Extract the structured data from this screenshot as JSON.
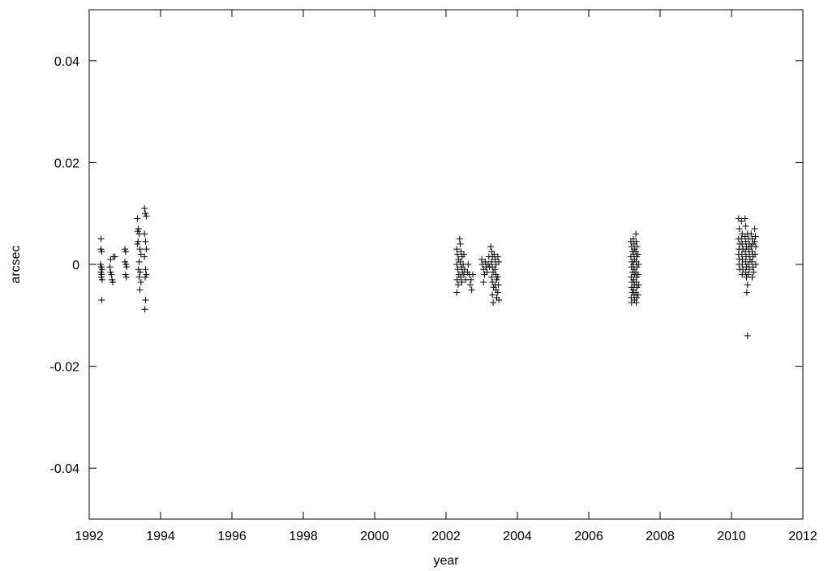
{
  "chart_data": {
    "type": "scatter",
    "marker": "plus",
    "marker_color": "#000000",
    "xlabel": "year",
    "ylabel": "arcsec",
    "xlim": [
      1992,
      2012
    ],
    "ylim": [
      -0.05,
      0.05
    ],
    "xticks": [
      1992,
      1994,
      1996,
      1998,
      2000,
      2002,
      2004,
      2006,
      2008,
      2010,
      2012
    ],
    "xtick_labels": [
      "1992",
      "1994",
      "1996",
      "1998",
      "2000",
      "2002",
      "2004",
      "2006",
      "2008",
      "2010",
      "2012"
    ],
    "yticks": [
      -0.04,
      -0.02,
      0,
      0.02,
      0.04
    ],
    "ytick_labels": [
      "-0.04",
      "-0.02",
      "0",
      "0.02",
      "0.04"
    ],
    "grid": false,
    "legend": "none",
    "series": [
      {
        "points": [
          [
            1992.33,
            0.005
          ],
          [
            1992.33,
            0.003
          ],
          [
            1992.35,
            0.0025
          ],
          [
            1992.32,
            0.0
          ],
          [
            1992.34,
            -0.0005
          ],
          [
            1992.36,
            -0.001
          ],
          [
            1992.33,
            -0.0015
          ],
          [
            1992.35,
            -0.002
          ],
          [
            1992.34,
            -0.0025
          ],
          [
            1992.36,
            -0.003
          ],
          [
            1992.35,
            -0.007
          ],
          [
            1992.6,
            0.001
          ],
          [
            1992.58,
            -0.0005
          ],
          [
            1992.6,
            -0.0015
          ],
          [
            1992.62,
            -0.002
          ],
          [
            1992.64,
            -0.003
          ],
          [
            1992.66,
            -0.0035
          ],
          [
            1992.68,
            0.0015
          ],
          [
            1992.72,
            0.0015
          ],
          [
            1993.0,
            0.003
          ],
          [
            1993.02,
            0.0025
          ],
          [
            1993.0,
            0.0005
          ],
          [
            1993.03,
            0.0
          ],
          [
            1993.05,
            -0.0005
          ],
          [
            1993.02,
            -0.002
          ],
          [
            1993.04,
            -0.0025
          ],
          [
            1993.35,
            0.009
          ],
          [
            1993.38,
            0.007
          ],
          [
            1993.36,
            0.0065
          ],
          [
            1993.4,
            0.006
          ],
          [
            1993.37,
            0.0045
          ],
          [
            1993.35,
            0.004
          ],
          [
            1993.42,
            0.003
          ],
          [
            1993.45,
            0.002
          ],
          [
            1993.4,
            0.0005
          ],
          [
            1993.38,
            -0.001
          ],
          [
            1993.43,
            -0.0015
          ],
          [
            1993.4,
            -0.0025
          ],
          [
            1993.45,
            -0.0035
          ],
          [
            1993.42,
            -0.005
          ],
          [
            1993.55,
            0.011
          ],
          [
            1993.57,
            0.01
          ],
          [
            1993.6,
            0.0095
          ],
          [
            1993.55,
            0.006
          ],
          [
            1993.58,
            0.0045
          ],
          [
            1993.6,
            0.003
          ],
          [
            1993.55,
            0.0015
          ],
          [
            1993.58,
            -0.001
          ],
          [
            1993.6,
            -0.002
          ],
          [
            1993.57,
            -0.0025
          ],
          [
            1993.58,
            -0.007
          ],
          [
            1993.56,
            -0.0088
          ],
          [
            2002.3,
            0.003
          ],
          [
            2002.32,
            0.002
          ],
          [
            2002.35,
            0.001
          ],
          [
            2002.3,
            0.0
          ],
          [
            2002.33,
            -0.001
          ],
          [
            2002.36,
            -0.002
          ],
          [
            2002.31,
            -0.003
          ],
          [
            2002.34,
            -0.004
          ],
          [
            2002.3,
            -0.0055
          ],
          [
            2002.38,
            0.005
          ],
          [
            2002.4,
            0.004
          ],
          [
            2002.42,
            0.0025
          ],
          [
            2002.45,
            0.0015
          ],
          [
            2002.4,
            0.0005
          ],
          [
            2002.43,
            -0.0005
          ],
          [
            2002.46,
            -0.0015
          ],
          [
            2002.41,
            -0.0025
          ],
          [
            2002.44,
            -0.0035
          ],
          [
            2002.5,
            0.002
          ],
          [
            2002.48,
            0.0
          ],
          [
            2002.52,
            -0.001
          ],
          [
            2002.5,
            -0.002
          ],
          [
            2002.55,
            -0.003
          ],
          [
            2002.6,
            -0.0015
          ],
          [
            2002.65,
            -0.002
          ],
          [
            2002.7,
            -0.003
          ],
          [
            2002.68,
            -0.004
          ],
          [
            2002.72,
            -0.005
          ],
          [
            2002.62,
            0.0
          ],
          [
            2002.75,
            -0.002
          ],
          [
            2003.0,
            0.001
          ],
          [
            2003.02,
            0.0
          ],
          [
            2003.05,
            -0.001
          ],
          [
            2003.08,
            -0.002
          ],
          [
            2003.1,
            0.0005
          ],
          [
            2003.12,
            -0.0005
          ],
          [
            2003.15,
            -0.0015
          ],
          [
            2003.05,
            -0.0035
          ],
          [
            2003.18,
            0.0
          ],
          [
            2003.2,
            0.0015
          ],
          [
            2003.22,
            -0.0005
          ],
          [
            2003.25,
            0.0035
          ],
          [
            2003.28,
            0.0025
          ],
          [
            2003.3,
            0.0015
          ],
          [
            2003.27,
            0.0005
          ],
          [
            2003.3,
            -0.0005
          ],
          [
            2003.32,
            -0.0015
          ],
          [
            2003.28,
            -0.0025
          ],
          [
            2003.3,
            -0.0035
          ],
          [
            2003.33,
            -0.0045
          ],
          [
            2003.3,
            -0.006
          ],
          [
            2003.32,
            -0.0075
          ],
          [
            2003.35,
            0.002
          ],
          [
            2003.38,
            0.001
          ],
          [
            2003.4,
            0.0
          ],
          [
            2003.37,
            -0.001
          ],
          [
            2003.4,
            -0.002
          ],
          [
            2003.42,
            -0.003
          ],
          [
            2003.38,
            -0.004
          ],
          [
            2003.4,
            -0.005
          ],
          [
            2003.42,
            -0.0065
          ],
          [
            2003.45,
            0.0015
          ],
          [
            2003.48,
            0.0005
          ],
          [
            2003.45,
            -0.0025
          ],
          [
            2003.47,
            -0.004
          ],
          [
            2003.45,
            -0.0055
          ],
          [
            2003.48,
            -0.007
          ],
          [
            2007.18,
            0.0045
          ],
          [
            2007.2,
            0.0035
          ],
          [
            2007.22,
            0.0025
          ],
          [
            2007.18,
            0.0015
          ],
          [
            2007.21,
            0.0005
          ],
          [
            2007.2,
            -0.0005
          ],
          [
            2007.22,
            -0.0015
          ],
          [
            2007.19,
            -0.0025
          ],
          [
            2007.21,
            -0.0035
          ],
          [
            2007.2,
            -0.0045
          ],
          [
            2007.22,
            -0.0055
          ],
          [
            2007.19,
            -0.0065
          ],
          [
            2007.2,
            -0.0075
          ],
          [
            2007.25,
            0.005
          ],
          [
            2007.27,
            0.004
          ],
          [
            2007.28,
            0.003
          ],
          [
            2007.26,
            0.002
          ],
          [
            2007.28,
            0.001
          ],
          [
            2007.25,
            0.0
          ],
          [
            2007.27,
            -0.001
          ],
          [
            2007.28,
            -0.002
          ],
          [
            2007.26,
            -0.003
          ],
          [
            2007.28,
            -0.004
          ],
          [
            2007.25,
            -0.005
          ],
          [
            2007.27,
            -0.006
          ],
          [
            2007.28,
            -0.007
          ],
          [
            2007.32,
            0.006
          ],
          [
            2007.33,
            0.0045
          ],
          [
            2007.35,
            0.0035
          ],
          [
            2007.32,
            0.0025
          ],
          [
            2007.34,
            0.0015
          ],
          [
            2007.33,
            0.0005
          ],
          [
            2007.35,
            -0.0005
          ],
          [
            2007.32,
            -0.0015
          ],
          [
            2007.34,
            -0.0025
          ],
          [
            2007.33,
            -0.0035
          ],
          [
            2007.35,
            -0.0045
          ],
          [
            2007.32,
            -0.0055
          ],
          [
            2007.34,
            -0.0065
          ],
          [
            2007.33,
            -0.0075
          ],
          [
            2007.38,
            0.002
          ],
          [
            2007.4,
            0.0
          ],
          [
            2007.38,
            -0.002
          ],
          [
            2007.4,
            -0.004
          ],
          [
            2007.38,
            -0.006
          ],
          [
            2010.2,
            0.009
          ],
          [
            2010.22,
            0.007
          ],
          [
            2010.2,
            0.005
          ],
          [
            2010.23,
            0.004
          ],
          [
            2010.21,
            0.003
          ],
          [
            2010.2,
            0.002
          ],
          [
            2010.22,
            0.001
          ],
          [
            2010.21,
            0.0
          ],
          [
            2010.23,
            -0.001
          ],
          [
            2010.28,
            0.0085
          ],
          [
            2010.3,
            0.006
          ],
          [
            2010.28,
            0.005
          ],
          [
            2010.3,
            0.004
          ],
          [
            2010.32,
            0.003
          ],
          [
            2010.29,
            0.002
          ],
          [
            2010.31,
            0.001
          ],
          [
            2010.3,
            0.0
          ],
          [
            2010.32,
            -0.001
          ],
          [
            2010.3,
            -0.002
          ],
          [
            2010.38,
            0.009
          ],
          [
            2010.4,
            0.0075
          ],
          [
            2010.38,
            0.0055
          ],
          [
            2010.4,
            0.0045
          ],
          [
            2010.42,
            0.0035
          ],
          [
            2010.39,
            0.0025
          ],
          [
            2010.41,
            0.0015
          ],
          [
            2010.4,
            0.0005
          ],
          [
            2010.42,
            -0.0005
          ],
          [
            2010.4,
            -0.0015
          ],
          [
            2010.42,
            -0.0025
          ],
          [
            2010.45,
            -0.004
          ],
          [
            2010.43,
            -0.0055
          ],
          [
            2010.45,
            0.006
          ],
          [
            2010.48,
            0.005
          ],
          [
            2010.5,
            0.004
          ],
          [
            2010.48,
            0.003
          ],
          [
            2010.5,
            0.002
          ],
          [
            2010.52,
            0.001
          ],
          [
            2010.48,
            0.0
          ],
          [
            2010.5,
            -0.001
          ],
          [
            2010.47,
            -0.002
          ],
          [
            2010.45,
            -0.014
          ],
          [
            2010.55,
            0.006
          ],
          [
            2010.58,
            0.005
          ],
          [
            2010.6,
            0.004
          ],
          [
            2010.55,
            0.0035
          ],
          [
            2010.58,
            0.0025
          ],
          [
            2010.6,
            0.0015
          ],
          [
            2010.57,
            0.0005
          ],
          [
            2010.6,
            -0.0005
          ],
          [
            2010.62,
            -0.0015
          ],
          [
            2010.58,
            -0.0025
          ],
          [
            2010.65,
            0.007
          ],
          [
            2010.67,
            0.0055
          ],
          [
            2010.65,
            0.0045
          ],
          [
            2010.68,
            0.0035
          ],
          [
            2010.66,
            0.002
          ],
          [
            2010.68,
            0.0
          ]
        ]
      }
    ]
  }
}
